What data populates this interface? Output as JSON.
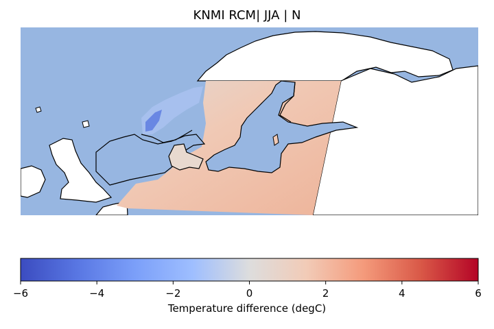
{
  "title": "KNMI RCM| JJA | N",
  "map": {
    "ocean_color": "#97b6e1",
    "land_color": "#ffffff",
    "coastline_color": "#000000",
    "data_field_note": "",
    "dominant_anomaly_color": "#eeb79d"
  },
  "colorbar": {
    "label": "Temperature difference (degC)",
    "colormap": "coolwarm",
    "min": -6,
    "max": 6,
    "ticks": [
      {
        "value": -6,
        "label": "−6"
      },
      {
        "value": -4,
        "label": "−4"
      },
      {
        "value": -2,
        "label": "−2"
      },
      {
        "value": 0,
        "label": "0"
      },
      {
        "value": 2,
        "label": "2"
      },
      {
        "value": 4,
        "label": "4"
      },
      {
        "value": 6,
        "label": "6"
      }
    ]
  }
}
